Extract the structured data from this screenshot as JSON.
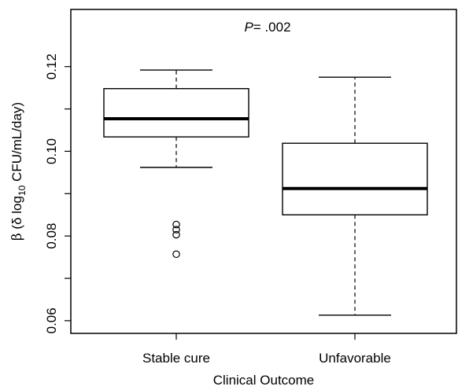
{
  "chart_data": {
    "type": "boxplot",
    "annotation": {
      "p_label": "P",
      "p_value": "= .002"
    },
    "xlabel": "Clinical Outcome",
    "ylabel": {
      "greek": "β",
      "open": " (δ log",
      "sub": "10",
      "rest": " CFU/mL/day)"
    },
    "ylim": [
      0.057,
      0.1335
    ],
    "yticks": [
      {
        "value": 0.06,
        "label": "0.06"
      },
      {
        "value": 0.08,
        "label": "0.08"
      },
      {
        "value": 0.1,
        "label": "0.10"
      },
      {
        "value": 0.12,
        "label": "0.12"
      }
    ],
    "yticks_minor": [
      0.07,
      0.09,
      0.11
    ],
    "categories": [
      "Stable cure",
      "Unfavorable"
    ],
    "boxes": [
      {
        "category": "Stable cure",
        "whisker_low": 0.0962,
        "q1": 0.1034,
        "median": 0.1077,
        "q3": 0.1148,
        "whisker_high": 0.1192,
        "outliers": [
          0.0827,
          0.0815,
          0.0803,
          0.0757
        ]
      },
      {
        "category": "Unfavorable",
        "whisker_low": 0.0613,
        "q1": 0.085,
        "median": 0.0912,
        "q3": 0.1019,
        "whisker_high": 0.1175,
        "outliers": []
      }
    ],
    "grid": false,
    "legend": "none"
  }
}
